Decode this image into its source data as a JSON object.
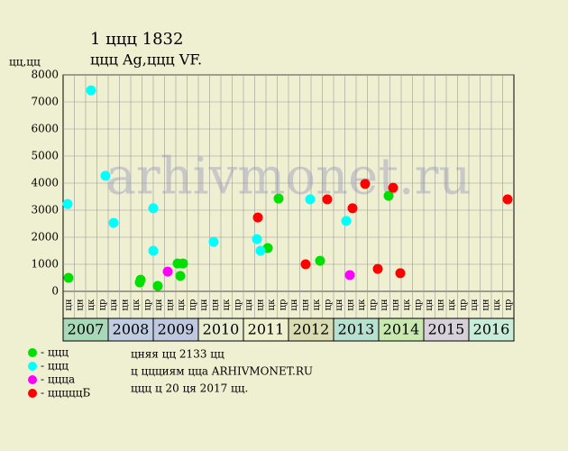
{
  "chart_data": {
    "type": "scatter",
    "title": "1 ццц 1832",
    "subtitle": "ццц Ag,ццц VF.",
    "y_label": "цц,цц",
    "watermark": "arhivmonet.ru",
    "xlim": [
      2007,
      2017
    ],
    "ylim": [
      0,
      8000
    ],
    "yticks": [
      0,
      1000,
      2000,
      3000,
      4000,
      5000,
      6000,
      7000,
      8000
    ],
    "grid": true,
    "years": [
      2007,
      2008,
      2009,
      2010,
      2011,
      2012,
      2013,
      2014,
      2015,
      2016
    ],
    "year_colors": [
      "#a8d8b8",
      "#c0cce0",
      "#c0c8e0",
      "#e8ecd0",
      "#f0f0d0",
      "#d8dcb0",
      "#b8e0d0",
      "#c8e8b0",
      "#d8d0d8",
      "#c8ecd8"
    ],
    "period_labels": [
      "цн",
      "цн",
      "цк",
      "цр",
      "цн",
      "цн",
      "цк",
      "цр",
      "цн",
      "цн",
      "цк",
      "цр",
      "цн",
      "цн",
      "цк",
      "цр",
      "цн",
      "цн",
      "цк",
      "цр",
      "цн",
      "цн",
      "цк",
      "цр",
      "цн",
      "цн",
      "цк",
      "цр",
      "цн",
      "цн",
      "цк",
      "цр",
      "цн",
      "цн",
      "цк",
      "цр",
      "цн",
      "цн",
      "цк",
      "цр"
    ],
    "series": [
      {
        "name": "- ццц",
        "color": "#00e000",
        "x": [
          2007.12,
          2008.72,
          2008.7,
          2009.1,
          2009.54,
          2009.66,
          2009.6,
          2011.54,
          2011.78,
          2012.7,
          2014.22
        ],
        "values": [
          500,
          430,
          330,
          200,
          1030,
          1030,
          570,
          1600,
          3430,
          1130,
          3530
        ]
      },
      {
        "name": "- ццц",
        "color": "#00ffff",
        "x": [
          2007.1,
          2007.62,
          2007.94,
          2008.12,
          2009.0,
          2009.0,
          2010.34,
          2011.3,
          2011.38,
          2012.48,
          2013.28
        ],
        "values": [
          3230,
          7430,
          4270,
          2530,
          3070,
          1500,
          1830,
          1930,
          1500,
          3400,
          2600
        ]
      },
      {
        "name": "- ццца",
        "color": "#ff00ff",
        "x": [
          2009.32,
          2013.36
        ],
        "values": [
          730,
          600
        ]
      },
      {
        "name": "- цццццБ",
        "color": "#ff0000",
        "x": [
          2011.32,
          2012.38,
          2012.86,
          2013.42,
          2013.7,
          2013.98,
          2014.32,
          2014.48,
          2016.86
        ],
        "values": [
          2730,
          1000,
          3400,
          3070,
          3970,
          830,
          3830,
          670,
          3400
        ]
      }
    ],
    "notes": [
      "цняя цц 2133 цц",
      "ц ццциям цца ARHIVMONET.RU",
      "ццц ц 20 ця 2017 цц."
    ]
  }
}
